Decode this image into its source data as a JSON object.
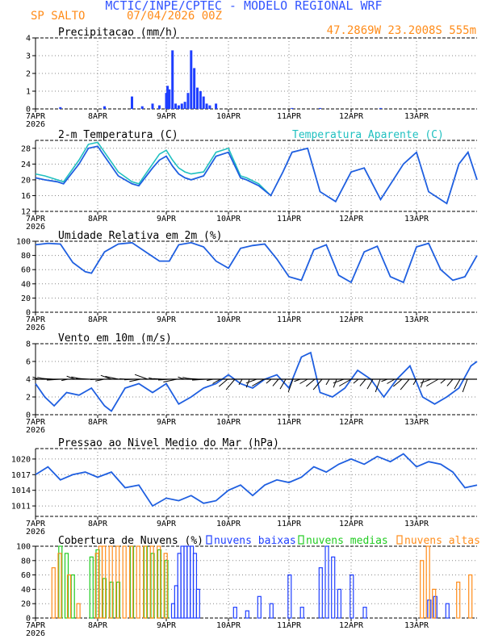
{
  "header": {
    "title": "MCTIC/INPE/CPTEC - MODELO REGIONAL WRF",
    "station": "SP SALTO",
    "run": "07/04/2026 00Z",
    "coords": "47.2869W 23.2008S 555m",
    "colors": {
      "title": "#3355ff",
      "station": "#ff8c1a"
    }
  },
  "x_axis": {
    "ticks": [
      "7APR",
      "8APR",
      "9APR",
      "10APR",
      "11APR",
      "12APR",
      "13APR"
    ],
    "year": "2026"
  },
  "chart_data": [
    {
      "id": "precip",
      "type": "bar",
      "title": "Precipitacao (mm/h)",
      "ylim": [
        0,
        4
      ],
      "yticks": [
        "0",
        "1",
        "2",
        "3",
        "4"
      ],
      "x": [
        0.4,
        1.1,
        1.5,
        1.65,
        1.8,
        1.9,
        2.0,
        2.02,
        2.05,
        2.1,
        2.15,
        2.2,
        2.25,
        2.3,
        2.35,
        2.4,
        2.45,
        2.5,
        2.55,
        2.6,
        2.65,
        2.7,
        2.8,
        4.05,
        4.5,
        5.45
      ],
      "values": [
        0.1,
        0.15,
        0.7,
        0.15,
        0.3,
        0.2,
        0.9,
        1.3,
        1.1,
        3.3,
        0.3,
        0.2,
        0.3,
        0.4,
        0.9,
        3.3,
        2.3,
        1.2,
        1.0,
        0.7,
        0.3,
        0.2,
        0.3,
        0.05,
        0.05,
        0.05
      ],
      "color": "#1f3fff",
      "grid": true
    },
    {
      "id": "temp",
      "type": "line",
      "title": "2-m Temperatura (C)",
      "ylim": [
        12,
        30
      ],
      "yticks": [
        "12",
        "16",
        "20",
        "24",
        "28"
      ],
      "series": [
        {
          "name": "Temperatura Aparente (C)",
          "color": "#20c0c0",
          "x": [
            0,
            0.15,
            0.35,
            0.45,
            0.7,
            0.85,
            1.0,
            1.1,
            1.3,
            1.5,
            1.6,
            1.8,
            1.9,
            2.0,
            2.1,
            2.2,
            2.3,
            2.4,
            2.6,
            2.8,
            3.0,
            3.2,
            3.3,
            3.5,
            3.7
          ],
          "values": [
            21.5,
            21,
            20,
            19.5,
            25,
            29,
            29.5,
            27,
            22,
            19.5,
            19,
            24,
            26.5,
            27.5,
            25,
            23,
            22,
            21.5,
            22,
            27,
            28,
            21,
            20.5,
            19,
            16
          ]
        },
        {
          "name": "",
          "color": "#1f5fe0",
          "x": [
            0,
            0.15,
            0.35,
            0.45,
            0.7,
            0.85,
            1.0,
            1.1,
            1.3,
            1.5,
            1.6,
            1.8,
            1.9,
            2.0,
            2.1,
            2.2,
            2.3,
            2.4,
            2.6,
            2.8,
            3.0,
            3.2,
            3.3,
            3.5,
            3.7,
            3.9,
            4.05,
            4.3,
            4.5,
            4.75,
            5.0,
            5.2,
            5.45,
            5.8,
            6.0,
            6.2,
            6.5,
            6.7,
            6.85,
            7.0
          ],
          "values": [
            20.5,
            20,
            19.5,
            19,
            24,
            28,
            28.5,
            26,
            21,
            19,
            18.5,
            23,
            25,
            26,
            23.5,
            21.5,
            20.5,
            20,
            21,
            26,
            27,
            20.5,
            20,
            18.5,
            16,
            22,
            27,
            28,
            17,
            14.5,
            22,
            23,
            15,
            24,
            27,
            17,
            14,
            24,
            27,
            20
          ]
        }
      ],
      "grid": true
    },
    {
      "id": "humidity",
      "type": "line",
      "title": "Umidade Relativa em 2m (%)",
      "ylim": [
        0,
        100
      ],
      "yticks": [
        "0",
        "20",
        "40",
        "60",
        "80",
        "100"
      ],
      "series": [
        {
          "name": "",
          "color": "#1f5fe0",
          "x": [
            0,
            0.2,
            0.4,
            0.6,
            0.8,
            0.9,
            1.1,
            1.3,
            1.5,
            1.7,
            1.9,
            2.05,
            2.2,
            2.4,
            2.6,
            2.8,
            3.0,
            3.2,
            3.4,
            3.6,
            3.8,
            4.0,
            4.2,
            4.4,
            4.6,
            4.8,
            5.0,
            5.2,
            5.4,
            5.6,
            5.8,
            6.0,
            6.2,
            6.4,
            6.6,
            6.8,
            7.0
          ],
          "values": [
            95,
            97,
            96,
            70,
            57,
            55,
            85,
            96,
            98,
            85,
            72,
            72,
            95,
            98,
            92,
            72,
            62,
            90,
            94,
            96,
            75,
            50,
            45,
            88,
            95,
            52,
            42,
            85,
            93,
            50,
            42,
            92,
            97,
            60,
            45,
            50,
            80
          ]
        }
      ],
      "grid": true
    },
    {
      "id": "wind",
      "type": "line",
      "title": "Vento em 10m (m/s)",
      "ylim": [
        0,
        8
      ],
      "yticks": [
        "0",
        "2",
        "4",
        "6",
        "8"
      ],
      "series": [
        {
          "name": "",
          "color": "#1f5fe0",
          "x": [
            0,
            0.15,
            0.3,
            0.5,
            0.7,
            0.9,
            1.1,
            1.2,
            1.4,
            1.6,
            1.8,
            2.0,
            2.2,
            2.4,
            2.6,
            2.8,
            3.0,
            3.2,
            3.4,
            3.6,
            3.8,
            4.0,
            4.2,
            4.35,
            4.5,
            4.7,
            4.9,
            5.1,
            5.3,
            5.5,
            5.7,
            5.9,
            6.1,
            6.3,
            6.5,
            6.7,
            6.9,
            7.0
          ],
          "values": [
            3.5,
            2,
            1,
            2.5,
            2.2,
            3,
            1,
            0.4,
            3,
            3.5,
            2.5,
            3.5,
            1.2,
            2,
            3,
            3.5,
            4.5,
            3.5,
            3,
            4,
            4.5,
            3,
            6.5,
            7,
            2.5,
            2,
            3,
            5,
            4,
            2,
            4,
            5.5,
            2,
            1.2,
            2,
            3,
            5.5,
            6
          ]
        }
      ],
      "grid": true
    },
    {
      "id": "pressure",
      "type": "line",
      "title": "Pressao ao Nivel Medio do Mar (hPa)",
      "ylim": [
        1009,
        1022
      ],
      "yticks": [
        "1011",
        "1014",
        "1017",
        "1020"
      ],
      "series": [
        {
          "name": "",
          "color": "#1f5fe0",
          "x": [
            0,
            0.2,
            0.4,
            0.6,
            0.8,
            1.0,
            1.2,
            1.4,
            1.6,
            1.8,
            2.0,
            2.2,
            2.4,
            2.6,
            2.8,
            3.0,
            3.2,
            3.4,
            3.6,
            3.8,
            4.0,
            4.2,
            4.4,
            4.6,
            4.8,
            5.0,
            5.2,
            5.4,
            5.6,
            5.8,
            6.0,
            6.2,
            6.4,
            6.6,
            6.8,
            7.0
          ],
          "values": [
            1017,
            1018.5,
            1016,
            1017,
            1017.5,
            1016.5,
            1017.5,
            1014.5,
            1015,
            1011,
            1012.5,
            1012,
            1013,
            1011.5,
            1012,
            1014,
            1015,
            1013,
            1015,
            1016,
            1015.5,
            1016.5,
            1018.5,
            1017.5,
            1019,
            1020,
            1019,
            1020.5,
            1019.5,
            1021,
            1018.5,
            1019.5,
            1019,
            1017.5,
            1014.5,
            1015
          ]
        }
      ],
      "grid": true
    },
    {
      "id": "clouds",
      "type": "bar",
      "title": "Cobertura de Nuvens (%)",
      "ylim": [
        0,
        100
      ],
      "yticks": [
        "0",
        "20",
        "40",
        "60",
        "80",
        "100"
      ],
      "legend": [
        "nuvens baixas",
        "nuvens medias",
        "nuvens altas"
      ],
      "series": [
        {
          "name": "nuvens baixas",
          "color": "#1f3fff",
          "x": [
            2.1,
            2.15,
            2.2,
            2.25,
            2.3,
            2.35,
            2.4,
            2.45,
            2.5,
            3.1,
            3.3,
            3.5,
            3.7,
            4.0,
            4.2,
            4.5,
            4.6,
            4.7,
            4.8,
            5.0,
            5.2,
            6.2,
            6.3,
            6.5
          ],
          "values": [
            20,
            45,
            90,
            100,
            100,
            100,
            100,
            90,
            40,
            15,
            10,
            30,
            20,
            60,
            15,
            70,
            100,
            85,
            40,
            60,
            15,
            25,
            30,
            20
          ]
        },
        {
          "name": "nuvens medias",
          "color": "#22cc22",
          "x": [
            0.4,
            0.5,
            0.6,
            0.9,
            1.0,
            1.1,
            1.2,
            1.3,
            1.5,
            1.7,
            1.8,
            1.9,
            2.0
          ],
          "values": [
            100,
            90,
            60,
            85,
            95,
            55,
            50,
            50,
            100,
            100,
            90,
            95,
            80
          ]
        },
        {
          "name": "nuvens altas",
          "color": "#ff8c1a",
          "x": [
            0.3,
            0.4,
            0.55,
            0.7,
            1.0,
            1.05,
            1.1,
            1.2,
            1.3,
            1.4,
            1.5,
            1.6,
            1.7,
            1.8,
            1.9,
            2.0,
            6.1,
            6.2,
            6.3,
            6.7,
            6.9
          ],
          "values": [
            70,
            90,
            60,
            20,
            90,
            100,
            100,
            100,
            100,
            100,
            100,
            100,
            100,
            100,
            100,
            90,
            80,
            100,
            40,
            50,
            60
          ]
        }
      ],
      "grid": true
    }
  ]
}
